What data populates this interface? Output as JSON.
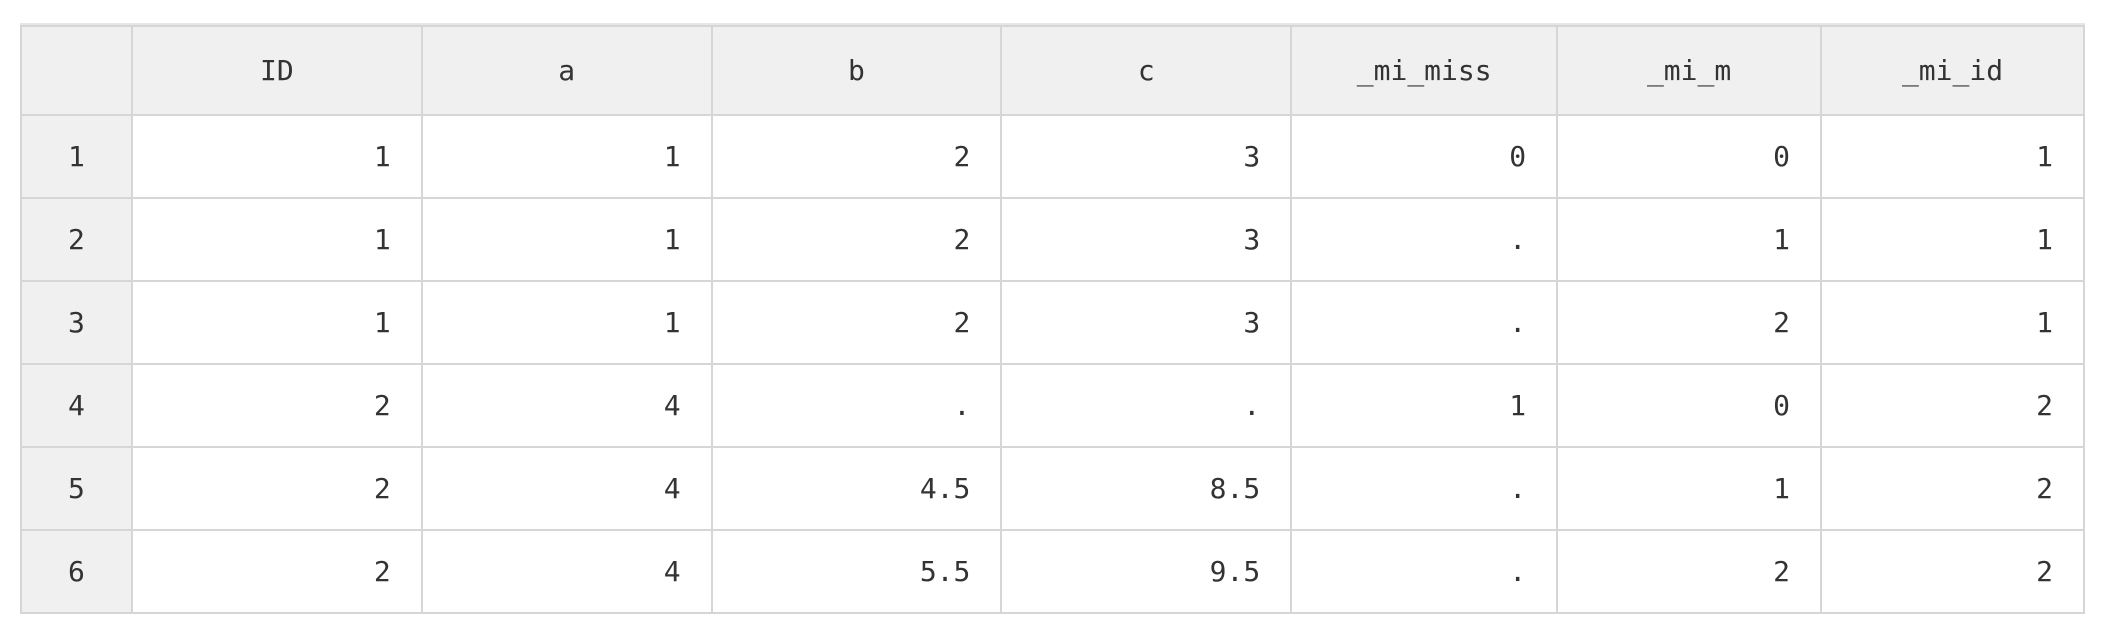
{
  "table": {
    "columns": [
      "ID",
      "a",
      "b",
      "c",
      "_mi_miss",
      "_mi_m",
      "_mi_id"
    ],
    "rows": [
      {
        "label": "1",
        "cells": [
          "1",
          "1",
          "2",
          "3",
          "0",
          "0",
          "1"
        ]
      },
      {
        "label": "2",
        "cells": [
          "1",
          "1",
          "2",
          "3",
          ".",
          "1",
          "1"
        ]
      },
      {
        "label": "3",
        "cells": [
          "1",
          "1",
          "2",
          "3",
          ".",
          "2",
          "1"
        ]
      },
      {
        "label": "4",
        "cells": [
          "2",
          "4",
          ".",
          ".",
          "1",
          "0",
          "2"
        ]
      },
      {
        "label": "5",
        "cells": [
          "2",
          "4",
          "4.5",
          "8.5",
          ".",
          "1",
          "2"
        ]
      },
      {
        "label": "6",
        "cells": [
          "2",
          "4",
          "5.5",
          "9.5",
          ".",
          "2",
          "2"
        ]
      }
    ]
  }
}
